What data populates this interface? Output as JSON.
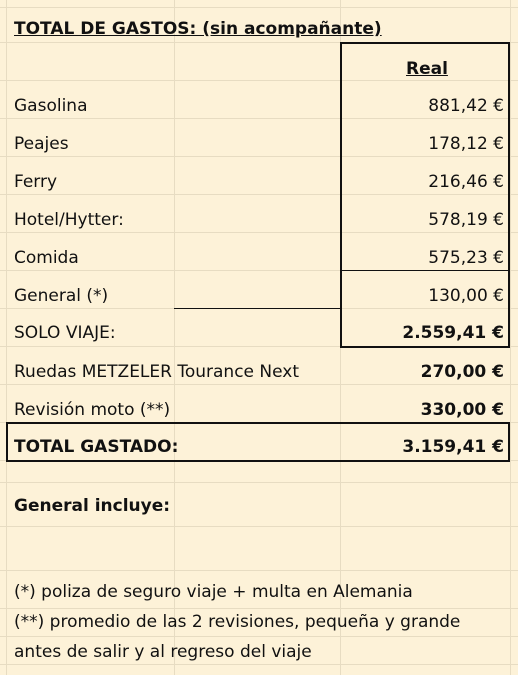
{
  "sheet": {
    "title": "TOTAL DE GASTOS: (sin acompañante)",
    "column_header": "Real",
    "rows": [
      {
        "label": "Gasolina",
        "value": "881,42 €"
      },
      {
        "label": "Peajes",
        "value": "178,12 €"
      },
      {
        "label": "Ferry",
        "value": "216,46 €"
      },
      {
        "label": "Hotel/Hytter:",
        "value": "578,19 €"
      },
      {
        "label": "Comida",
        "value": "575,23 €"
      },
      {
        "label": "General (*)",
        "value": "130,00 €"
      }
    ],
    "subtotal": {
      "label": "SOLO VIAJE:",
      "value": "2.559,41 €"
    },
    "extras": [
      {
        "label": "Ruedas METZELER Tourance Next",
        "value": "270,00 €"
      },
      {
        "label": "Revisión moto (**)",
        "value": "330,00 €"
      }
    ],
    "total": {
      "label": "TOTAL GASTADO:",
      "value": "3.159,41 €"
    },
    "notes": {
      "heading": "General incluye:",
      "lines": [
        "(*) poliza de seguro viaje + multa en Alemania",
        "(**) promedio de las 2 revisiones, pequeña y grande",
        "antes de salir y al regreso del viaje"
      ]
    }
  },
  "colors": {
    "background": "#fdf2d8",
    "gridline": "#e7dcc2",
    "border": "#111111"
  }
}
